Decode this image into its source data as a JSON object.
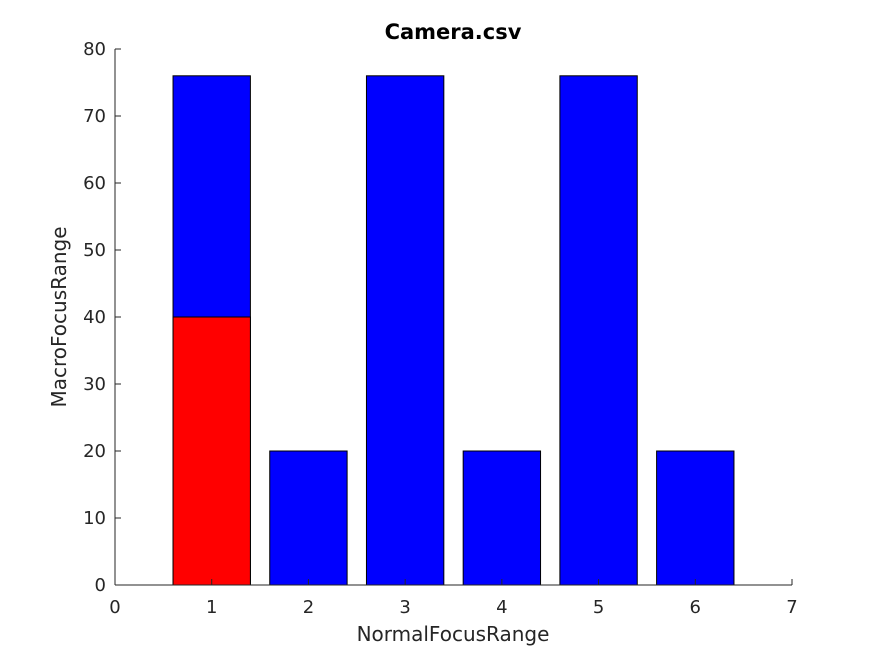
{
  "chart_data": {
    "type": "bar",
    "title": "Camera.csv",
    "xlabel": "NormalFocusRange",
    "ylabel": "MacroFocusRange",
    "xlim": [
      0,
      7
    ],
    "ylim": [
      0,
      80
    ],
    "xticks": [
      0,
      1,
      2,
      3,
      4,
      5,
      6,
      7
    ],
    "yticks": [
      0,
      10,
      20,
      30,
      40,
      50,
      60,
      70,
      80
    ],
    "grid": false,
    "bar_width": 0.8,
    "default_color": "#0000ff",
    "highlight_color": "#ff0000",
    "bars": [
      {
        "x": 1,
        "value": 76,
        "color": "#0000ff"
      },
      {
        "x": 1,
        "value": 40,
        "color": "#ff0000"
      },
      {
        "x": 2,
        "value": 20,
        "color": "#0000ff"
      },
      {
        "x": 3,
        "value": 76,
        "color": "#0000ff"
      },
      {
        "x": 4,
        "value": 20,
        "color": "#0000ff"
      },
      {
        "x": 5,
        "value": 76,
        "color": "#0000ff"
      },
      {
        "x": 6,
        "value": 20,
        "color": "#0000ff"
      }
    ]
  }
}
